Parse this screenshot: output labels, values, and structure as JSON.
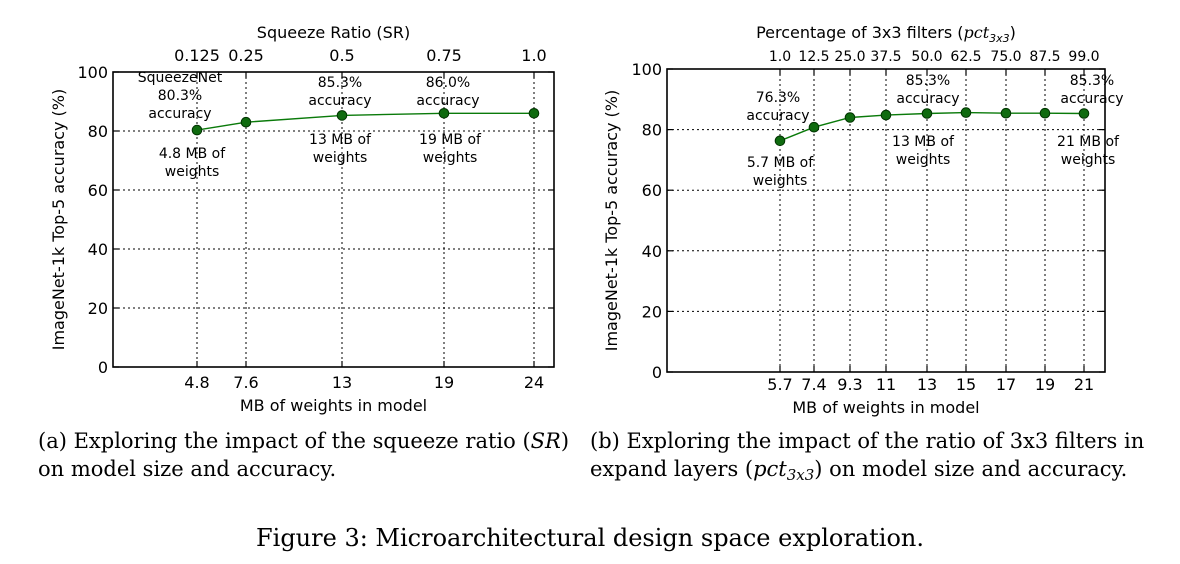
{
  "chart_data": [
    {
      "type": "line",
      "panel": "a",
      "top_axis_title": "Squeeze Ratio (SR)",
      "xlabel": "MB of weights in model",
      "ylabel": "ImageNet-1k Top-5 accuracy (%)",
      "x_tick_labels": [
        "4.8",
        "7.6",
        "13",
        "19",
        "24"
      ],
      "top_tick_labels": [
        "0.125",
        "0.25",
        "0.5",
        "0.75",
        "1.0"
      ],
      "x": [
        4.8,
        7.6,
        13,
        19,
        24
      ],
      "values": [
        80.3,
        83.0,
        85.3,
        86.0,
        86.0
      ],
      "yticks": [
        0,
        20,
        40,
        60,
        80,
        100
      ],
      "ylim": [
        0,
        100
      ],
      "grid": true,
      "annotations": [
        {
          "id": "a1",
          "lines": [
            "SqueezeNet",
            "80.3%",
            "accuracy"
          ]
        },
        {
          "id": "a2",
          "lines": [
            "4.8 MB of",
            "weights"
          ]
        },
        {
          "id": "a3",
          "lines": [
            "85.3%",
            "accuracy"
          ]
        },
        {
          "id": "a4",
          "lines": [
            "13 MB of",
            "weights"
          ]
        },
        {
          "id": "a5",
          "lines": [
            "86.0%",
            "accuracy"
          ]
        },
        {
          "id": "a6",
          "lines": [
            "19 MB of",
            "weights"
          ]
        }
      ]
    },
    {
      "type": "line",
      "panel": "b",
      "top_axis_title": "Percentage of 3x3 filters",
      "top_axis_title_math": "pct",
      "top_axis_title_sub": "3x3",
      "xlabel": "MB of weights in model",
      "ylabel": "ImageNet-1k Top-5 accuracy (%)",
      "x_tick_labels": [
        "5.7",
        "7.4",
        "9.3",
        "11",
        "13",
        "15",
        "17",
        "19",
        "21"
      ],
      "top_tick_labels": [
        "1.0",
        "12.5",
        "25.0",
        "37.5",
        "50.0",
        "62.5",
        "75.0",
        "87.5",
        "99.0"
      ],
      "x": [
        5.7,
        7.4,
        9.3,
        11,
        13,
        15,
        17,
        19,
        21
      ],
      "values": [
        76.3,
        80.8,
        84.0,
        84.8,
        85.3,
        85.6,
        85.4,
        85.4,
        85.3
      ],
      "yticks": [
        0,
        20,
        40,
        60,
        80,
        100
      ],
      "ylim": [
        0,
        100
      ],
      "grid": true,
      "annotations": [
        {
          "id": "b1",
          "lines": [
            "76.3%",
            "accuracy"
          ]
        },
        {
          "id": "b2",
          "lines": [
            "5.7 MB of",
            "weights"
          ]
        },
        {
          "id": "b3",
          "lines": [
            "85.3%",
            "accuracy"
          ]
        },
        {
          "id": "b4",
          "lines": [
            "13 MB of",
            "weights"
          ]
        },
        {
          "id": "b5",
          "lines": [
            "85.3%",
            "accuracy"
          ]
        },
        {
          "id": "b6",
          "lines": [
            "21 MB of",
            "weights"
          ]
        }
      ]
    }
  ],
  "captions": {
    "a_prefix": "(a) Exploring the impact of the squeeze ratio (",
    "a_math": "SR",
    "a_suffix": ") on model size and accuracy.",
    "b_prefix": "(b) Exploring the impact of the ratio of 3x3 filters in expand layers (",
    "b_math": "pct",
    "b_sub": "3x3",
    "b_suffix": ") on model size and accuracy.",
    "figure": "Figure 3: Microarchitectural design space exploration."
  },
  "colors": {
    "line": "#0a7a0a",
    "marker_fill": "#0f6b0f",
    "marker_stroke": "#003300",
    "grid": "#000000"
  }
}
